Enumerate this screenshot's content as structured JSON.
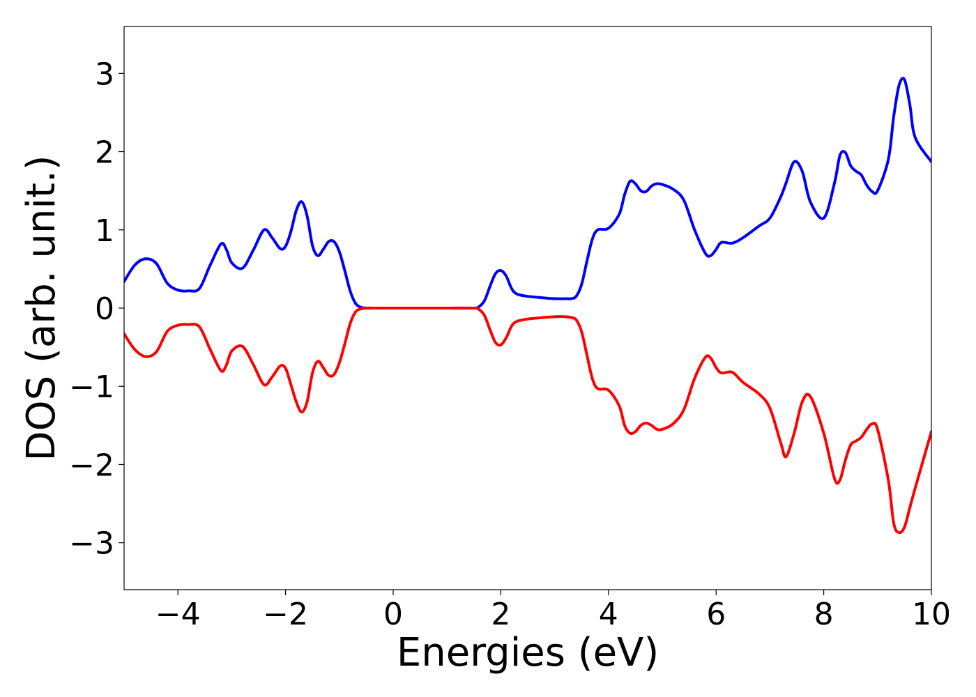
{
  "chart_data": {
    "type": "line",
    "title": "",
    "xlabel": "Energies (eV)",
    "ylabel": "DOS (arb. unit.)",
    "xlim": [
      -5,
      10
    ],
    "ylim": [
      -3.6,
      3.6
    ],
    "xticks": [
      -4,
      -2,
      0,
      2,
      4,
      6,
      8,
      10
    ],
    "xtick_labels": [
      "−4",
      "−2",
      "0",
      "2",
      "4",
      "6",
      "8",
      "10"
    ],
    "yticks": [
      3,
      2,
      1,
      0,
      -1,
      -2,
      -3
    ],
    "ytick_labels": [
      "3",
      "2",
      "1",
      "0",
      "−1",
      "−2",
      "−3"
    ],
    "grid": false,
    "legend": "none",
    "series": [
      {
        "color": "#0000ff",
        "x": [
          -5.0,
          -4.8,
          -4.6,
          -4.4,
          -4.2,
          -4.0,
          -3.8,
          -3.6,
          -3.4,
          -3.2,
          -3.1,
          -3.0,
          -2.8,
          -2.6,
          -2.4,
          -2.25,
          -2.1,
          -2.0,
          -1.9,
          -1.8,
          -1.7,
          -1.6,
          -1.5,
          -1.4,
          -1.3,
          -1.2,
          -1.1,
          -1.0,
          -0.9,
          -0.8,
          -0.7,
          -0.6,
          -0.5,
          -0.4,
          0.0,
          0.5,
          1.0,
          1.5,
          1.6,
          1.7,
          1.8,
          1.9,
          2.0,
          2.1,
          2.2,
          2.3,
          2.5,
          2.8,
          3.0,
          3.2,
          3.3,
          3.4,
          3.5,
          3.6,
          3.7,
          3.8,
          4.0,
          4.2,
          4.3,
          4.4,
          4.5,
          4.6,
          4.7,
          4.8,
          4.9,
          5.0,
          5.2,
          5.4,
          5.6,
          5.8,
          5.9,
          6.0,
          6.1,
          6.3,
          6.5,
          6.8,
          7.0,
          7.2,
          7.3,
          7.45,
          7.6,
          7.75,
          8.0,
          8.2,
          8.3,
          8.4,
          8.5,
          8.6,
          8.7,
          8.8,
          8.9,
          9.0,
          9.2,
          9.3,
          9.4,
          9.5,
          9.6,
          9.7,
          10.0
        ],
        "y": [
          0.34,
          0.55,
          0.63,
          0.57,
          0.32,
          0.23,
          0.22,
          0.25,
          0.55,
          0.82,
          0.75,
          0.58,
          0.51,
          0.74,
          1.0,
          0.9,
          0.76,
          0.79,
          0.98,
          1.25,
          1.36,
          1.18,
          0.8,
          0.67,
          0.75,
          0.85,
          0.85,
          0.72,
          0.48,
          0.22,
          0.06,
          0.01,
          0.0,
          0.0,
          0.0,
          0.0,
          0.0,
          0.0,
          0.02,
          0.1,
          0.28,
          0.44,
          0.48,
          0.41,
          0.25,
          0.18,
          0.15,
          0.13,
          0.12,
          0.12,
          0.12,
          0.15,
          0.3,
          0.6,
          0.88,
          1.0,
          1.02,
          1.2,
          1.45,
          1.62,
          1.59,
          1.5,
          1.49,
          1.56,
          1.59,
          1.58,
          1.52,
          1.38,
          1.0,
          0.7,
          0.67,
          0.75,
          0.84,
          0.83,
          0.9,
          1.05,
          1.15,
          1.42,
          1.6,
          1.87,
          1.75,
          1.36,
          1.15,
          1.6,
          1.95,
          1.99,
          1.82,
          1.75,
          1.7,
          1.57,
          1.49,
          1.5,
          1.9,
          2.45,
          2.85,
          2.92,
          2.6,
          2.18,
          1.87
        ]
      },
      {
        "color": "#ff0000",
        "x": [
          -5.0,
          -4.8,
          -4.6,
          -4.4,
          -4.2,
          -4.0,
          -3.8,
          -3.6,
          -3.4,
          -3.2,
          -3.1,
          -3.0,
          -2.8,
          -2.6,
          -2.4,
          -2.25,
          -2.1,
          -2.0,
          -1.9,
          -1.8,
          -1.7,
          -1.6,
          -1.5,
          -1.4,
          -1.3,
          -1.2,
          -1.1,
          -1.0,
          -0.9,
          -0.8,
          -0.7,
          -0.6,
          -0.5,
          -0.4,
          0.0,
          0.5,
          1.0,
          1.5,
          1.6,
          1.7,
          1.8,
          1.9,
          2.0,
          2.1,
          2.2,
          2.3,
          2.5,
          2.8,
          3.0,
          3.2,
          3.3,
          3.4,
          3.5,
          3.6,
          3.7,
          3.8,
          4.0,
          4.2,
          4.3,
          4.4,
          4.5,
          4.6,
          4.7,
          4.8,
          4.9,
          5.0,
          5.2,
          5.4,
          5.6,
          5.8,
          5.9,
          6.0,
          6.1,
          6.3,
          6.5,
          6.8,
          7.0,
          7.2,
          7.3,
          7.45,
          7.6,
          7.75,
          8.0,
          8.2,
          8.3,
          8.4,
          8.5,
          8.6,
          8.7,
          8.8,
          8.9,
          9.0,
          9.2,
          9.3,
          9.4,
          9.5,
          9.6,
          9.7,
          10.0
        ],
        "y": [
          -0.33,
          -0.53,
          -0.62,
          -0.56,
          -0.3,
          -0.22,
          -0.21,
          -0.24,
          -0.53,
          -0.8,
          -0.73,
          -0.55,
          -0.49,
          -0.72,
          -0.98,
          -0.88,
          -0.74,
          -0.77,
          -0.98,
          -1.2,
          -1.33,
          -1.2,
          -0.83,
          -0.68,
          -0.76,
          -0.86,
          -0.85,
          -0.7,
          -0.46,
          -0.2,
          -0.05,
          -0.01,
          0.0,
          0.0,
          0.0,
          0.0,
          0.0,
          0.0,
          -0.02,
          -0.1,
          -0.28,
          -0.44,
          -0.47,
          -0.38,
          -0.23,
          -0.17,
          -0.14,
          -0.12,
          -0.11,
          -0.11,
          -0.12,
          -0.15,
          -0.3,
          -0.6,
          -0.9,
          -1.03,
          -1.05,
          -1.25,
          -1.5,
          -1.6,
          -1.58,
          -1.5,
          -1.47,
          -1.5,
          -1.55,
          -1.55,
          -1.48,
          -1.3,
          -0.9,
          -0.63,
          -0.64,
          -0.76,
          -0.83,
          -0.82,
          -0.95,
          -1.1,
          -1.28,
          -1.72,
          -1.9,
          -1.6,
          -1.2,
          -1.13,
          -1.6,
          -2.18,
          -2.2,
          -1.95,
          -1.75,
          -1.7,
          -1.65,
          -1.55,
          -1.48,
          -1.55,
          -2.2,
          -2.75,
          -2.87,
          -2.8,
          -2.55,
          -2.3,
          -1.58
        ]
      }
    ]
  }
}
